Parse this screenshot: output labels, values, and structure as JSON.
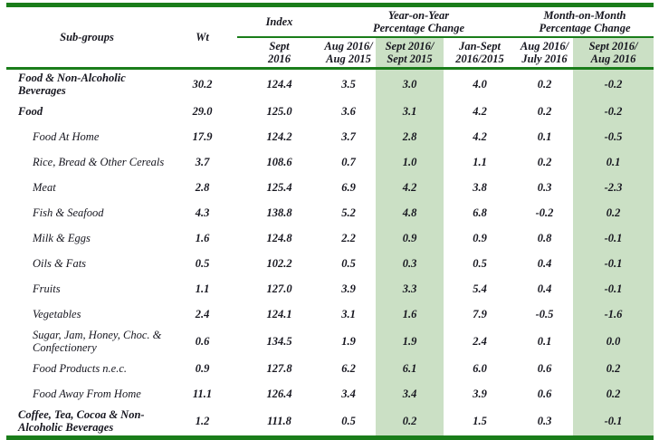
{
  "colors": {
    "border_green": "#1a7d1a",
    "highlight_green": "#cbe0c5",
    "text": "#16161f"
  },
  "table": {
    "header": {
      "subgroups": "Sub-groups",
      "wt": "Wt",
      "index_group": "Index",
      "yoy_group": "Year-on-Year\nPercentage Change",
      "mom_group": "Month-on-Month\nPercentage Change",
      "period_cols": [
        "Sept\n2016",
        "Aug 2016/\nAug 2015",
        "Sept 2016/\nSept 2015",
        "Jan-Sept\n2016/2015",
        "Aug 2016/\nJuly 2016",
        "Sept 2016/\nAug 2016"
      ]
    },
    "rows": [
      {
        "name": "Food & Non-Alcoholic Beverages",
        "level": "group",
        "wt": "30.2",
        "values": [
          "124.4",
          "3.5",
          "3.0",
          "4.0",
          "0.2",
          "-0.2"
        ]
      },
      {
        "name": "Food",
        "level": "group",
        "wt": "29.0",
        "values": [
          "125.0",
          "3.6",
          "3.1",
          "4.2",
          "0.2",
          "-0.2"
        ]
      },
      {
        "name": "Food At Home",
        "level": "sub",
        "wt": "17.9",
        "values": [
          "124.2",
          "3.7",
          "2.8",
          "4.2",
          "0.1",
          "-0.5"
        ]
      },
      {
        "name": "Rice, Bread & Other Cereals",
        "level": "sub",
        "wt": "3.7",
        "values": [
          "108.6",
          "0.7",
          "1.0",
          "1.1",
          "0.2",
          "0.1"
        ]
      },
      {
        "name": "Meat",
        "level": "sub",
        "wt": "2.8",
        "values": [
          "125.4",
          "6.9",
          "4.2",
          "3.8",
          "0.3",
          "-2.3"
        ]
      },
      {
        "name": "Fish & Seafood",
        "level": "sub",
        "wt": "4.3",
        "values": [
          "138.8",
          "5.2",
          "4.8",
          "6.8",
          "-0.2",
          "0.2"
        ]
      },
      {
        "name": "Milk & Eggs",
        "level": "sub",
        "wt": "1.6",
        "values": [
          "124.8",
          "2.2",
          "0.9",
          "0.9",
          "0.8",
          "-0.1"
        ]
      },
      {
        "name": "Oils & Fats",
        "level": "sub",
        "wt": "0.5",
        "values": [
          "102.2",
          "0.5",
          "0.3",
          "0.5",
          "0.4",
          "-0.1"
        ]
      },
      {
        "name": "Fruits",
        "level": "sub",
        "wt": "1.1",
        "values": [
          "127.0",
          "3.9",
          "3.3",
          "5.4",
          "0.4",
          "-0.1"
        ]
      },
      {
        "name": "Vegetables",
        "level": "sub",
        "wt": "2.4",
        "values": [
          "124.1",
          "3.1",
          "1.6",
          "7.9",
          "-0.5",
          "-1.6"
        ]
      },
      {
        "name": "Sugar, Jam, Honey, Choc. & Confectionery",
        "level": "sub",
        "wt": "0.6",
        "values": [
          "134.5",
          "1.9",
          "1.9",
          "2.4",
          "0.1",
          "0.0"
        ]
      },
      {
        "name": "Food Products n.e.c.",
        "level": "sub",
        "wt": "0.9",
        "values": [
          "127.8",
          "6.2",
          "6.1",
          "6.0",
          "0.6",
          "0.2"
        ]
      },
      {
        "name": "Food Away From Home",
        "level": "sub",
        "wt": "11.1",
        "values": [
          "126.4",
          "3.4",
          "3.4",
          "3.9",
          "0.6",
          "0.2"
        ]
      },
      {
        "name": "Coffee, Tea, Cocoa & Non-Alcoholic Beverages",
        "level": "group",
        "wt": "1.2",
        "values": [
          "111.8",
          "0.5",
          "0.2",
          "1.5",
          "0.3",
          "-0.1"
        ]
      }
    ]
  }
}
